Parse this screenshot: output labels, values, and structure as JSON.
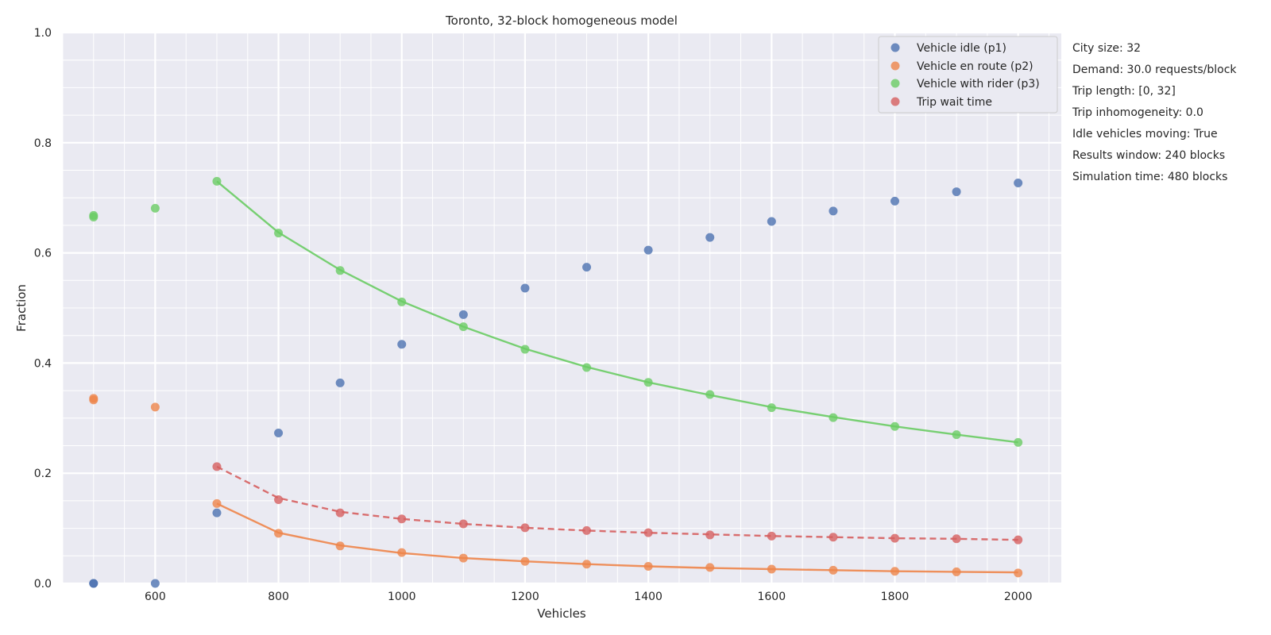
{
  "chart_data": {
    "type": "scatter",
    "title": "Toronto, 32-block homogeneous model",
    "xlabel": "Vehicles",
    "ylabel": "Fraction",
    "xlim": [
      450,
      2070
    ],
    "ylim": [
      0,
      1.0
    ],
    "xticks": [
      600,
      800,
      1000,
      1200,
      1400,
      1600,
      1800,
      2000
    ],
    "xtick_labels": [
      "600",
      "800",
      "1000",
      "1200",
      "1400",
      "1600",
      "1800",
      "2000"
    ],
    "yticks": [
      0,
      0.2,
      0.4,
      0.6,
      0.8,
      1.0
    ],
    "ytick_labels": [
      "0.0",
      "0.2",
      "0.4",
      "0.6",
      "0.8",
      "1.0"
    ],
    "grid": true,
    "legend_position": "top-right",
    "series": [
      {
        "name": "Vehicle idle (p1)",
        "color": "#4c72b0",
        "points": [
          [
            500,
            0.0
          ],
          [
            500,
            0.0
          ],
          [
            600,
            0.0
          ],
          [
            700,
            0.128
          ],
          [
            800,
            0.273
          ],
          [
            900,
            0.364
          ],
          [
            1000,
            0.434
          ],
          [
            1100,
            0.488
          ],
          [
            1200,
            0.536
          ],
          [
            1300,
            0.574
          ],
          [
            1400,
            0.605
          ],
          [
            1500,
            0.628
          ],
          [
            1600,
            0.657
          ],
          [
            1700,
            0.676
          ],
          [
            1800,
            0.694
          ],
          [
            1900,
            0.711
          ],
          [
            2000,
            0.727
          ]
        ],
        "fit": null
      },
      {
        "name": "Vehicle en route (p2)",
        "color": "#ee854a",
        "points": [
          [
            500,
            0.336
          ],
          [
            500,
            0.333
          ],
          [
            600,
            0.32
          ],
          [
            700,
            0.145
          ],
          [
            800,
            0.091
          ],
          [
            900,
            0.068
          ],
          [
            1000,
            0.056
          ],
          [
            1100,
            0.046
          ],
          [
            1200,
            0.04
          ],
          [
            1300,
            0.035
          ],
          [
            1400,
            0.031
          ],
          [
            1500,
            0.029
          ],
          [
            1600,
            0.026
          ],
          [
            1700,
            0.024
          ],
          [
            1800,
            0.022
          ],
          [
            1900,
            0.021
          ],
          [
            2000,
            0.019
          ]
        ],
        "fit": {
          "style": "solid",
          "x": [
            700,
            800,
            900,
            1000,
            1100,
            1200,
            1300,
            1400,
            1500,
            1600,
            1700,
            1800,
            1900,
            2000
          ],
          "y": [
            0.145,
            0.092,
            0.069,
            0.055,
            0.046,
            0.04,
            0.035,
            0.031,
            0.028,
            0.026,
            0.024,
            0.022,
            0.021,
            0.02
          ]
        }
      },
      {
        "name": "Vehicle with rider (p3)",
        "color": "#6acc64",
        "points": [
          [
            500,
            0.668
          ],
          [
            500,
            0.665
          ],
          [
            600,
            0.681
          ],
          [
            700,
            0.73
          ],
          [
            800,
            0.636
          ],
          [
            900,
            0.568
          ],
          [
            1000,
            0.511
          ],
          [
            1100,
            0.466
          ],
          [
            1200,
            0.425
          ],
          [
            1300,
            0.392
          ],
          [
            1400,
            0.365
          ],
          [
            1500,
            0.343
          ],
          [
            1600,
            0.319
          ],
          [
            1700,
            0.301
          ],
          [
            1800,
            0.285
          ],
          [
            1900,
            0.27
          ],
          [
            2000,
            0.256
          ]
        ],
        "fit": {
          "style": "solid",
          "x": [
            700,
            800,
            900,
            1000,
            1100,
            1200,
            1300,
            1400,
            1500,
            1600,
            1700,
            1800,
            1900,
            2000
          ],
          "y": [
            0.73,
            0.637,
            0.569,
            0.512,
            0.466,
            0.426,
            0.393,
            0.365,
            0.342,
            0.32,
            0.302,
            0.285,
            0.27,
            0.256
          ]
        }
      },
      {
        "name": "Trip wait time",
        "color": "#d65f5f",
        "points": [
          [
            700,
            0.212
          ],
          [
            800,
            0.152
          ],
          [
            900,
            0.128
          ],
          [
            1000,
            0.117
          ],
          [
            1100,
            0.108
          ],
          [
            1200,
            0.101
          ],
          [
            1300,
            0.096
          ],
          [
            1400,
            0.092
          ],
          [
            1500,
            0.088
          ],
          [
            1600,
            0.086
          ],
          [
            1700,
            0.084
          ],
          [
            1800,
            0.082
          ],
          [
            1900,
            0.081
          ],
          [
            2000,
            0.079
          ]
        ],
        "fit": {
          "style": "dashed",
          "x": [
            700,
            800,
            900,
            1000,
            1100,
            1200,
            1300,
            1400,
            1500,
            1600,
            1700,
            1800,
            1900,
            2000
          ],
          "y": [
            0.212,
            0.155,
            0.13,
            0.117,
            0.108,
            0.101,
            0.096,
            0.092,
            0.089,
            0.086,
            0.084,
            0.082,
            0.081,
            0.079
          ]
        }
      }
    ],
    "annotations": [
      "City size: 32",
      "Demand: 30.0 requests/block",
      "Trip length: [0, 32]",
      "Trip inhomogeneity: 0.0",
      "Idle vehicles moving: True",
      "Results window: 240 blocks",
      "Simulation time: 480 blocks"
    ]
  },
  "colors": {
    "plot_background": "#eaeaf2",
    "grid": "#ffffff"
  }
}
